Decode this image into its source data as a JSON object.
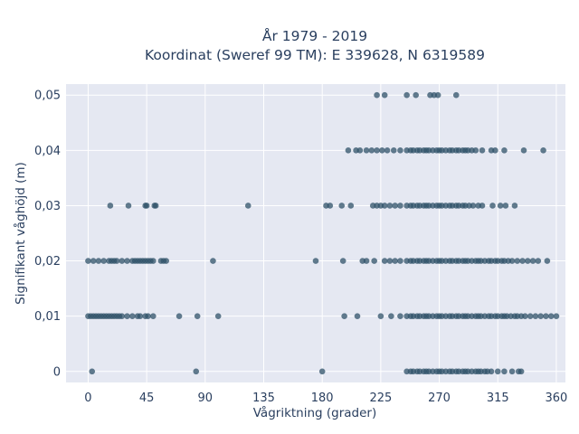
{
  "chart_data": {
    "type": "scatter",
    "title": "År 1979 - 2019",
    "subtitle": "Koordinat (Sweref 99 TM): E 339628, N 6319589",
    "xlabel": "Vågriktning (grader)",
    "ylabel": "Signifikant våghöjd (m)",
    "xlim": [
      -17,
      367
    ],
    "ylim": [
      -0.002,
      0.052
    ],
    "xticks": [
      0,
      45,
      90,
      135,
      180,
      225,
      270,
      315,
      360
    ],
    "xtick_labels": [
      "0",
      "45",
      "90",
      "135",
      "180",
      "225",
      "270",
      "315",
      "360"
    ],
    "yticks": [
      0,
      0.01,
      0.02,
      0.03,
      0.04,
      0.05
    ],
    "ytick_labels": [
      "0",
      "0,01",
      "0,02",
      "0,03",
      "0,04",
      "0,05"
    ],
    "grid": true,
    "marker_color": "#2f5168",
    "plot_background": "#e5e8f2",
    "series": [
      {
        "y": 0,
        "x": [
          3,
          83,
          180,
          245,
          248,
          250,
          253,
          255,
          258,
          260,
          262,
          265,
          268,
          270,
          272,
          275,
          278,
          280,
          283,
          285,
          288,
          290,
          292,
          295,
          298,
          300,
          302,
          305,
          307,
          310,
          315,
          320,
          326,
          331,
          333
        ]
      },
      {
        "y": 0.01,
        "x": [
          0,
          2,
          4,
          6,
          8,
          10,
          12,
          14,
          16,
          18,
          20,
          22,
          24,
          26,
          30,
          34,
          38,
          40,
          44,
          46,
          50,
          70,
          84,
          100,
          197,
          207,
          225,
          233,
          240,
          245,
          248,
          250,
          253,
          255,
          258,
          260,
          262,
          265,
          268,
          270,
          272,
          275,
          278,
          280,
          283,
          285,
          288,
          290,
          292,
          295,
          298,
          300,
          302,
          305,
          308,
          310,
          313,
          315,
          318,
          320,
          322,
          325,
          328,
          330,
          333,
          336,
          340,
          344,
          348,
          352,
          356,
          360
        ]
      },
      {
        "y": 0.02,
        "x": [
          0,
          4,
          8,
          12,
          16,
          18,
          20,
          22,
          26,
          30,
          34,
          36,
          38,
          40,
          42,
          44,
          46,
          48,
          50,
          56,
          58,
          60,
          96,
          175,
          196,
          211,
          214,
          220,
          228,
          232,
          236,
          240,
          245,
          248,
          250,
          253,
          255,
          258,
          260,
          262,
          265,
          268,
          270,
          272,
          275,
          278,
          280,
          283,
          285,
          288,
          290,
          292,
          295,
          298,
          300,
          302,
          305,
          308,
          310,
          313,
          315,
          318,
          320,
          323,
          326,
          330,
          334,
          338,
          342,
          346,
          353
        ]
      },
      {
        "y": 0.03,
        "x": [
          17,
          31,
          44,
          45,
          51,
          52,
          123,
          183,
          186,
          195,
          202,
          219,
          222,
          225,
          228,
          232,
          236,
          240,
          245,
          248,
          250,
          253,
          255,
          258,
          260,
          262,
          265,
          268,
          270,
          272,
          275,
          278,
          280,
          283,
          285,
          288,
          290,
          293,
          296,
          300,
          303,
          311,
          317,
          321,
          328
        ]
      },
      {
        "y": 0.04,
        "x": [
          200,
          206,
          209,
          214,
          218,
          222,
          226,
          230,
          235,
          240,
          245,
          248,
          250,
          253,
          255,
          258,
          260,
          262,
          265,
          268,
          270,
          272,
          275,
          278,
          280,
          283,
          285,
          288,
          290,
          292,
          295,
          298,
          303,
          310,
          313,
          320,
          335,
          350
        ]
      },
      {
        "y": 0.05,
        "x": [
          222,
          228,
          245,
          252,
          263,
          266,
          269,
          283
        ]
      }
    ]
  }
}
